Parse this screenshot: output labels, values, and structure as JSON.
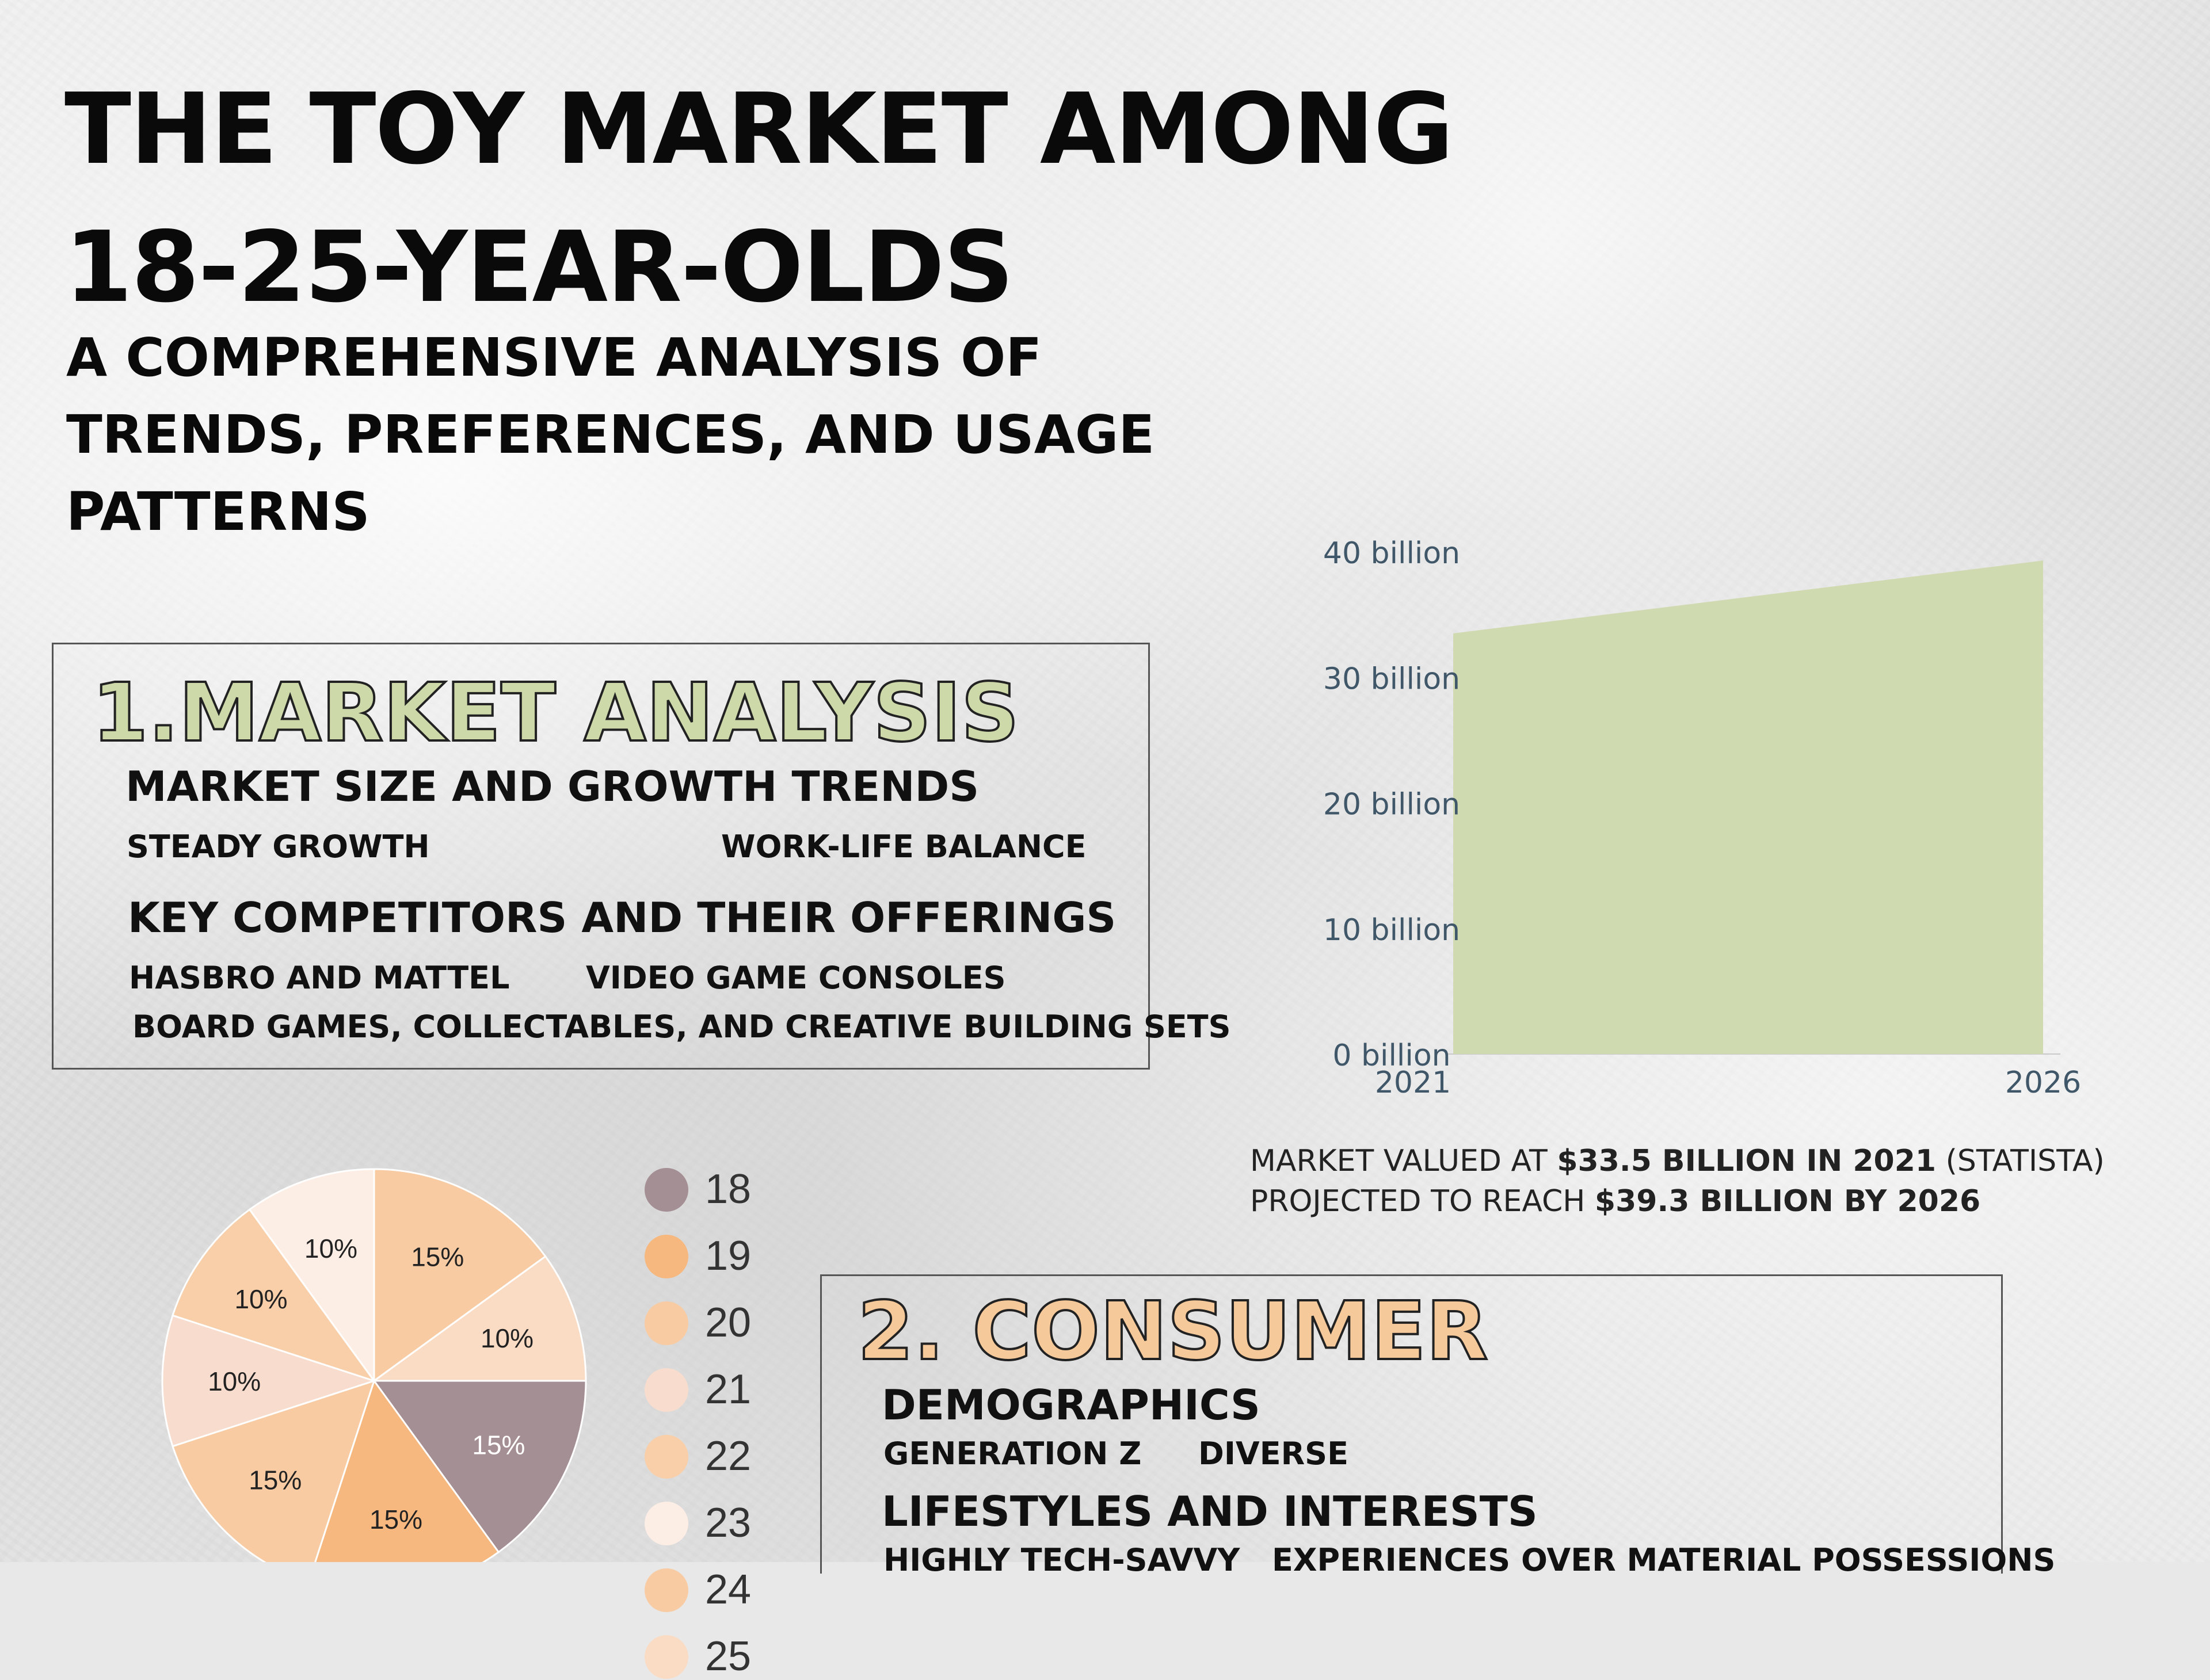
{
  "header": {
    "title_line1": "THE TOY MARKET AMONG",
    "title_line2": "18-25-YEAR-OLDS",
    "subtitle_line1": "A COMPREHENSIVE ANALYSIS OF",
    "subtitle_line2": "TRENDS, PREFERENCES, AND USAGE",
    "subtitle_line3": "PATTERNS"
  },
  "market_analysis": {
    "heading": "1.MARKET ANALYSIS",
    "heading_color": "#cdd9a9",
    "section1_title": "MARKET SIZE AND GROWTH TRENDS",
    "section1_item1": "STEADY GROWTH",
    "section1_item2": "WORK-LIFE BALANCE",
    "section2_title": "KEY COMPETITORS AND THEIR OFFERINGS",
    "section2_item1": "HASBRO AND MATTEL",
    "section2_item2": "VIDEO GAME CONSOLES",
    "section2_item3": "BOARD GAMES, COLLECTABLES, AND CREATIVE BUILDING SETS"
  },
  "consumer": {
    "heading": "2. CONSUMER",
    "heading_color": "#f6c99a",
    "section1_title": "DEMOGRAPHICS",
    "section1_item1": "GENERATION Z",
    "section1_item2": "DIVERSE",
    "section2_title": "LIFESTYLES AND INTERESTS",
    "section2_item1": "HIGHLY TECH-SAVVY",
    "section2_item2": "EXPERIENCES OVER MATERIAL POSSESSIONS"
  },
  "market_caption": {
    "line1_prefix": "MARKET VALUED AT ",
    "line1_bold": "$33.5 BILLION IN 2021",
    "line1_suffix": " (STATISTA)",
    "line2_prefix": "PROJECTED TO REACH ",
    "line2_bold": "$39.3 BILLION BY 2026"
  },
  "chart_data": [
    {
      "type": "area",
      "x": [
        "2021",
        "2026"
      ],
      "values": [
        33.5,
        39.3
      ],
      "unit": "billion",
      "ylim": [
        0,
        40
      ],
      "yticks": [
        0,
        10,
        20,
        30,
        40
      ],
      "ytick_labels": [
        "0 billion",
        "10 billion",
        "20 billion",
        "30 billion",
        "40 billion"
      ],
      "fill_color": "#cfdab0",
      "tick_color": "#3f5768",
      "grid": false
    },
    {
      "type": "pie",
      "legend_placement": "right",
      "slices": [
        {
          "label": "18",
          "value": 15,
          "text": "15%",
          "color": "#a48f95"
        },
        {
          "label": "19",
          "value": 15,
          "text": "15%",
          "color": "#f6b87e"
        },
        {
          "label": "20",
          "value": 15,
          "text": "15%",
          "color": "#f8cba3"
        },
        {
          "label": "21",
          "value": 10,
          "text": "10%",
          "color": "#f8dccd"
        },
        {
          "label": "22",
          "value": 10,
          "text": "10%",
          "color": "#f8cfa8"
        },
        {
          "label": "23",
          "value": 10,
          "text": "10%",
          "color": "#fdeee5"
        },
        {
          "label": "24",
          "value": 15,
          "text": "15%",
          "color": "#f8cba3"
        },
        {
          "label": "25",
          "value": 10,
          "text": "10%",
          "color": "#fadcc5"
        }
      ]
    }
  ]
}
